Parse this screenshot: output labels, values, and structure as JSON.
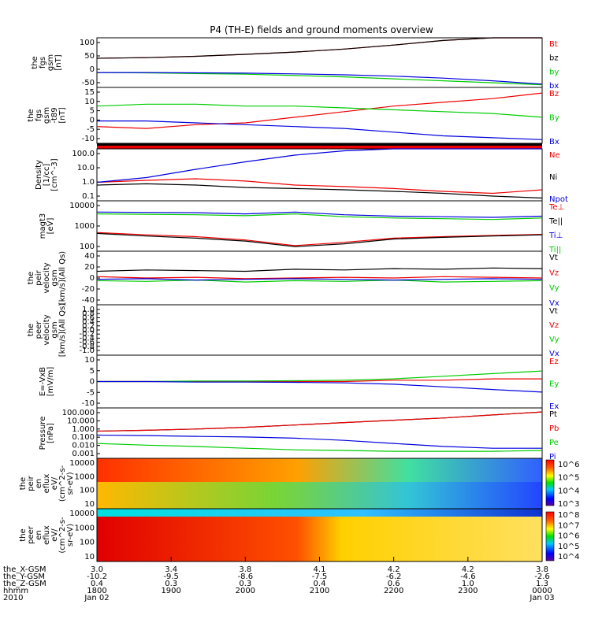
{
  "title": "P4 (TH-E) fields and ground moments overview",
  "colors": {
    "black": "#000000",
    "red": "#ee0000",
    "green": "#00cc00",
    "blue": "#0000dd"
  },
  "chart_data": [
    {
      "id": "p1",
      "type": "line",
      "ylabel": [
        "the",
        "fgs",
        "gsm",
        "[nT]"
      ],
      "ylim": [
        -50,
        100
      ],
      "yticks": [
        "100",
        "50",
        "0",
        "-50"
      ],
      "series": [
        {
          "name": "Bt",
          "color": "red",
          "values": [
            38,
            40,
            44,
            50,
            57,
            66,
            78,
            92,
            108,
            120
          ]
        },
        {
          "name": "bz",
          "color": "black",
          "values": [
            38,
            40,
            44,
            50,
            57,
            66,
            78,
            92,
            108,
            120
          ]
        },
        {
          "name": "by",
          "color": "green",
          "values": [
            -5,
            -6,
            -8,
            -10,
            -14,
            -18,
            -24,
            -30,
            -36,
            -42
          ]
        },
        {
          "name": "bx",
          "color": "blue",
          "values": [
            -5,
            -5,
            -6,
            -7,
            -9,
            -12,
            -16,
            -22,
            -30,
            -40
          ]
        }
      ]
    },
    {
      "id": "p2",
      "type": "line",
      "ylabel": [
        "the",
        "fgs",
        "gsm",
        "-t89",
        "[nT]"
      ],
      "ylim": [
        -12,
        18
      ],
      "yticks": [
        "15",
        "10",
        "5",
        "0",
        "-5",
        "-10"
      ],
      "series": [
        {
          "name": "Bz",
          "color": "red",
          "values": [
            -3,
            -4,
            -2,
            -1,
            2,
            5,
            8,
            10,
            12,
            15
          ]
        },
        {
          "name": "By",
          "color": "green",
          "values": [
            8,
            9,
            9,
            8,
            8,
            7,
            6,
            5,
            4,
            2
          ]
        },
        {
          "name": "Bx",
          "color": "blue",
          "values": [
            0,
            0,
            -1,
            -2,
            -3,
            -4,
            -6,
            -8,
            -9,
            -10
          ]
        }
      ]
    },
    {
      "id": "p3",
      "type": "line",
      "ylabel": [
        "Density",
        "[1/cc]",
        "[cm^-3]"
      ],
      "ylim": [
        0.1,
        200
      ],
      "yticks": [
        "100.0",
        "10.0",
        "1.0",
        "0.1"
      ],
      "series": [
        {
          "name": "Ne",
          "color": "red",
          "values": [
            1.5,
            2,
            2.5,
            1.8,
            1,
            0.8,
            0.6,
            0.4,
            0.3,
            0.5
          ]
        },
        {
          "name": "Ni",
          "color": "black",
          "values": [
            1,
            1.2,
            1,
            0.7,
            0.6,
            0.5,
            0.4,
            0.3,
            0.2,
            0.15
          ]
        },
        {
          "name": "Npot",
          "color": "blue",
          "values": [
            1.5,
            3,
            10,
            30,
            80,
            150,
            200,
            200,
            200,
            200
          ]
        }
      ]
    },
    {
      "id": "p4",
      "type": "line",
      "ylabel": [
        "magt3",
        "[eV]"
      ],
      "ylim": [
        20,
        10000
      ],
      "yticks": [
        "10000",
        "1000",
        "100"
      ],
      "series": [
        {
          "name": "Te⊥",
          "color": "red",
          "values": [
            200,
            150,
            120,
            80,
            40,
            60,
            100,
            120,
            140,
            160
          ]
        },
        {
          "name": "Te||",
          "color": "black",
          "values": [
            180,
            130,
            100,
            70,
            35,
            50,
            90,
            110,
            130,
            150
          ]
        },
        {
          "name": "Ti⊥",
          "color": "blue",
          "values": [
            2500,
            2400,
            2300,
            2000,
            2500,
            1800,
            1500,
            1400,
            1300,
            1500
          ]
        },
        {
          "name": "Ti||",
          "color": "green",
          "values": [
            2000,
            1900,
            1800,
            1600,
            2000,
            1400,
            1200,
            1100,
            1000,
            1200
          ]
        }
      ]
    },
    {
      "id": "p5",
      "type": "line",
      "ylabel": [
        "the",
        "peir",
        "velocity",
        "gsm",
        "[km/s](All Qs)"
      ],
      "ylim": [
        -40,
        40
      ],
      "yticks": [
        "40",
        "20",
        "0",
        "-20",
        "-40"
      ],
      "series": [
        {
          "name": "Vt",
          "color": "black",
          "values": [
            10,
            12,
            11,
            10,
            13,
            12,
            14,
            13,
            15,
            14
          ]
        },
        {
          "name": "Vz",
          "color": "red",
          "values": [
            2,
            0,
            1,
            -1,
            0,
            1,
            0,
            2,
            1,
            0
          ]
        },
        {
          "name": "Vy",
          "color": "green",
          "values": [
            -4,
            -5,
            -3,
            -6,
            -4,
            -5,
            -3,
            -6,
            -5,
            -4
          ]
        },
        {
          "name": "Vx",
          "color": "blue",
          "values": [
            -2,
            -1,
            -3,
            -2,
            -1,
            -2,
            -3,
            -2,
            -1,
            -2
          ]
        }
      ]
    },
    {
      "id": "p6",
      "type": "line",
      "ylabel": [
        "the",
        "peer",
        "velocity",
        "gsm",
        "[km/s](All Qs)"
      ],
      "ylim": [
        -1,
        1
      ],
      "yticks": [
        "1.0",
        "0.8",
        "0.6",
        "0.4",
        "0.2",
        "0.0",
        "-0.2",
        "-0.4",
        "-0.6",
        "-0.8",
        "-1.0"
      ],
      "series": [
        {
          "name": "Vt",
          "color": "black",
          "values": []
        },
        {
          "name": "Vz",
          "color": "red",
          "values": []
        },
        {
          "name": "Vy",
          "color": "green",
          "values": []
        },
        {
          "name": "Vx",
          "color": "blue",
          "values": []
        }
      ]
    },
    {
      "id": "p7",
      "type": "line",
      "ylabel": [
        "E=-VxB",
        "[mV/m]"
      ],
      "ylim": [
        -10,
        10
      ],
      "yticks": [
        "10",
        "5",
        "0",
        "-5",
        "-10"
      ],
      "series": [
        {
          "name": "Ez",
          "color": "red",
          "values": [
            0,
            0,
            0,
            0,
            0,
            0,
            0.5,
            0.5,
            1,
            1
          ]
        },
        {
          "name": "Ey",
          "color": "green",
          "values": [
            0,
            0,
            0.2,
            0.2,
            0.3,
            0.5,
            1,
            2,
            3,
            4
          ]
        },
        {
          "name": "Ex",
          "color": "blue",
          "values": [
            0,
            0,
            -0.2,
            -0.2,
            -0.3,
            -0.5,
            -1,
            -2,
            -3,
            -4
          ]
        }
      ]
    },
    {
      "id": "p8",
      "type": "line",
      "ylabel": [
        "Pressure",
        "[nPa]"
      ],
      "ylim": [
        0.001,
        100
      ],
      "yticks": [
        "100.000",
        "10.000",
        "1.000",
        "0.100",
        "0.010",
        "0.001"
      ],
      "series": [
        {
          "name": "Pt",
          "color": "black",
          "values": [
            0.5,
            0.6,
            0.8,
            1.2,
            2,
            3.5,
            6,
            10,
            20,
            40
          ]
        },
        {
          "name": "Pb",
          "color": "red",
          "values": [
            0.5,
            0.6,
            0.8,
            1.2,
            2,
            3.5,
            6,
            10,
            20,
            40
          ]
        },
        {
          "name": "Pe",
          "color": "green",
          "values": [
            0.03,
            0.02,
            0.015,
            0.01,
            0.007,
            0.006,
            0.005,
            0.005,
            0.005,
            0.006
          ]
        },
        {
          "name": "Pi",
          "color": "blue",
          "values": [
            0.2,
            0.18,
            0.15,
            0.13,
            0.1,
            0.06,
            0.03,
            0.015,
            0.01,
            0.01
          ]
        }
      ]
    },
    {
      "id": "p9",
      "type": "heatmap",
      "ylabel": [
        "the",
        "peir",
        "en",
        "eflux",
        "eV/",
        "(cm^2-s-",
        "sr-eV)"
      ],
      "yticks": [
        "10000",
        "1000",
        "100",
        "10"
      ],
      "cbar_ticks": [
        "10^6",
        "10^5",
        "10^4",
        "10^3"
      ]
    },
    {
      "id": "p10",
      "type": "heatmap",
      "ylabel": [
        "the",
        "peer",
        "en",
        "eflux",
        "eV/",
        "(cm^2-s-",
        "sr-eV)"
      ],
      "yticks": [
        "10000",
        "1000",
        "100",
        "10"
      ],
      "cbar_ticks": [
        "10^8",
        "10^7",
        "10^6",
        "10^5",
        "10^4"
      ]
    }
  ],
  "xaxis": {
    "rows": [
      {
        "label": "the_X-GSM",
        "values": [
          "3.0",
          "3.4",
          "3.8",
          "4.1",
          "4.2",
          "4.2",
          "3.8"
        ]
      },
      {
        "label": "the_Y-GSM",
        "values": [
          "-10.2",
          "-9.5",
          "-8.6",
          "-7.5",
          "-6.2",
          "-4.6",
          "-2.6"
        ]
      },
      {
        "label": "the_Z-GSM",
        "values": [
          "0.4",
          "0.3",
          "0.3",
          "0.4",
          "0.6",
          "1.0",
          "1.3"
        ]
      },
      {
        "label": "hhmm",
        "values": [
          "1800",
          "1900",
          "2000",
          "2100",
          "2200",
          "2300",
          "0000"
        ]
      },
      {
        "label": "2010",
        "values": [
          "Jan 02",
          "",
          "",
          "",
          "",
          "",
          "Jan 03"
        ]
      }
    ]
  }
}
